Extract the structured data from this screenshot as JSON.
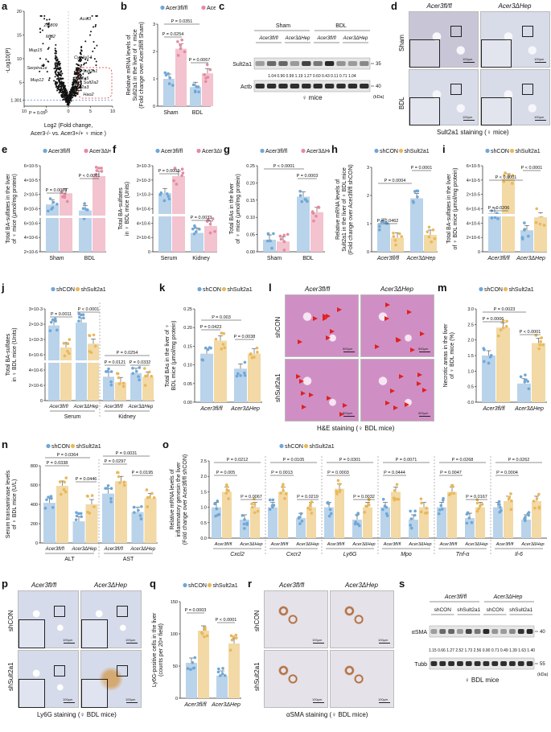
{
  "panel_letters": [
    "a",
    "b",
    "c",
    "d",
    "e",
    "f",
    "g",
    "h",
    "i",
    "j",
    "k",
    "l",
    "m",
    "n",
    "o",
    "p",
    "q",
    "r",
    "s"
  ],
  "colors": {
    "blue": "#6fa7d6",
    "pink": "#e58aa0",
    "orange": "#e8b85a",
    "blue_bar": "#b9d3ea",
    "pink_bar": "#f3c3cf",
    "orange_bar": "#f2d9a5",
    "ihc_bg": "#d6dbeb",
    "he_bg": "#cf8fc4",
    "brown": "#b2703f"
  },
  "legend": {
    "fl": "Acer3fl/fl",
    "dhep": "Acer3ΔHep",
    "shcon": "shCON",
    "shsult": "shSult2a1"
  },
  "a": {
    "ylabel": "-Log10(P)",
    "xlabel_line1": "Log2 (Fold change,",
    "xlabel_line2": "Acer3-/- vs. Acer3+/+ ♀ mice )",
    "yticks": [
      "20",
      "15",
      "10",
      "5",
      "1.301"
    ],
    "xticks": [
      "10",
      "5",
      "0",
      "5",
      "10"
    ],
    "pval": "P = 0.05",
    "genes": [
      "Zfp809",
      "Mal2",
      "Mup15",
      "Serpina1e",
      "Mup12",
      "Acot3",
      "Cyp4a14",
      "Sult2a1",
      "Sult2a5",
      "Sult2a2",
      "Sult2a3",
      "Hao2"
    ]
  },
  "b": {
    "ylabel_l1": "Relative mRNA levels of",
    "ylabel_l2": "Sult2a1 in the liver of ♀ mice",
    "ylabel_l3": "(Fold change over Acer3fl/fl Sham)",
    "yticks": [
      "0",
      "1",
      "2",
      "3"
    ],
    "groups": [
      "Sham",
      "BDL"
    ],
    "p1": "P = 0.0351",
    "p2": "P = 0.0254",
    "p3": "P = 0.0067"
  },
  "c": {
    "groups": [
      "Sham",
      "BDL"
    ],
    "genos": [
      "Acer3fl/fl",
      "Acer3ΔHep",
      "Acer3fl/fl",
      "Acer3ΔHep"
    ],
    "bands": [
      "Sult2a1",
      "Actb"
    ],
    "mw": [
      "35",
      "40"
    ],
    "quant": "1.04 0.96 0.99 1.19 1.27 0.60 0.43 0.11 0.71 1.04",
    "footer": "♀ mice",
    "kda": "(kDa)"
  },
  "d": {
    "cols": [
      "Acer3fl/fl",
      "Acer3ΔHep"
    ],
    "rows": [
      "Sham",
      "BDL"
    ],
    "scale": "100μm",
    "caption": "Sult2a1 staining (♀ mice)"
  },
  "e": {
    "ylabel_l1": "Total BA-sulfates in the liver",
    "ylabel_l2": "of ♀ mice (μmol/mg protein)",
    "yticks": [
      "2×10-6",
      "4×10-6",
      "6×10-6",
      "8×10-6",
      "2×10-5",
      "4×10-5",
      "6×10-5"
    ],
    "groups": [
      "Sham",
      "BDL"
    ],
    "p1": "P = 0.0089",
    "p2": "P < 0.0001"
  },
  "f": {
    "ylabel_l1": "Total BA-sulfates",
    "ylabel_l2": "in ♀ BDL mice (Units)",
    "yticks": [
      "0",
      "2×10-6",
      "4×10-6",
      "6×10-6",
      "1×10-3",
      "2×10-3",
      "3×10-3"
    ],
    "groups": [
      "Serum",
      "Kidney"
    ],
    "p1": "P = 0.0002",
    "p2": "P = 0.0033"
  },
  "g": {
    "ylabel_l1": "Total BAs in the liver",
    "ylabel_l2": "of ♀ mice (μmol/mg protein)",
    "yticks": [
      "0.00",
      "0.05",
      "0.10",
      "0.15",
      "0.20",
      "0.25"
    ],
    "groups": [
      "Sham",
      "BDL"
    ],
    "p1": "P < 0.0001",
    "p2": "P = 0.0003"
  },
  "h": {
    "ylabel_l1": "Relative mRNA levels of",
    "ylabel_l2": "Sult2a1 in the liver of ♀ BDL mice",
    "ylabel_l3": "(Fold change over Acer3fl/fl shCON)",
    "yticks": [
      "0",
      "1",
      "2",
      "3"
    ],
    "groups": [
      "Acer3fl/fl",
      "Acer3ΔHep"
    ],
    "p1": "P = 0.0004",
    "p2": "P = 0.0001",
    "p3": "P = 0.0462"
  },
  "i": {
    "ylabel_l1": "Total BA-sulfates in the liver",
    "ylabel_l2": "of ♀ BDL mice (μmol/mg protein)",
    "yticks": [
      "0",
      "2×10-6",
      "4×10-6",
      "6×10-6",
      "2×10-5",
      "4×10-5",
      "6×10-5"
    ],
    "groups": [
      "Acer3fl/fl",
      "Acer3ΔHep"
    ],
    "p1": "P < 0.0001",
    "p2": "P < 0.0001",
    "p3": "P = 0.0206"
  },
  "j": {
    "ylabel_l1": "Total BA-sulfates",
    "ylabel_l2": "in ♀ BDL mice (Units)",
    "yticks": [
      "0",
      "2×10-6",
      "4×10-6",
      "6×10-6",
      "1×10-3",
      "2×10-3",
      "3×10-3"
    ],
    "groups": [
      "Acer3fl/fl",
      "Acer3ΔHep",
      "Acer3fl/fl",
      "Acer3ΔHep"
    ],
    "sections": [
      "Serum",
      "Kidney"
    ],
    "p": [
      "P = 0.0011",
      "P < 0.0001",
      "P = 0.0254",
      "P = 0.0121",
      "P = 0.0332"
    ]
  },
  "k": {
    "ylabel_l1": "Total BAs in the liver of ♀",
    "ylabel_l2": "BDL mice (μmol/mg protein)",
    "yticks": [
      "0.00",
      "0.05",
      "0.10",
      "0.15",
      "0.20",
      "0.25"
    ],
    "groups": [
      "Acer3fl/fl",
      "Acer3ΔHep"
    ],
    "p1": "P = 0.003",
    "p2": "P = 0.0423",
    "p3": "P = 0.0038"
  },
  "l": {
    "cols": [
      "Acer3fl/fl",
      "Acer3ΔHep"
    ],
    "rows": [
      "shCON",
      "shSult2a1"
    ],
    "scale": "500μm",
    "caption": "H&E staining (♀ BDL mice)"
  },
  "m": {
    "ylabel_l1": "Necrotic areas in the liver",
    "ylabel_l2": "of ♀ BDL mice (%)",
    "yticks": [
      "0.0",
      "0.5",
      "1.0",
      "1.5",
      "2.0",
      "2.5",
      "3.0"
    ],
    "groups": [
      "Acer3fl/fl",
      "Acer3ΔHep"
    ],
    "p1": "P = 0.0023",
    "p2": "P = 0.0006",
    "p3": "P < 0.0001"
  },
  "n": {
    "ylabel_l1": "Serum transaminase levels",
    "ylabel_l2": "of ♀ BDL mice (U/L)",
    "yticks": [
      "0",
      "200",
      "400",
      "600",
      "800"
    ],
    "sections": [
      "ALT",
      "AST"
    ],
    "groups": [
      "Acer3fl/fl",
      "Acer3ΔHep",
      "Acer3fl/fl",
      "Acer3ΔHep"
    ],
    "p": [
      "P = 0.0364",
      "P = 0.0338",
      "P = 0.0446",
      "P = 0.0031",
      "P = 0.0297",
      "P = 0.0195"
    ]
  },
  "o": {
    "ylabel_l1": "Relative mRNA levels of",
    "ylabel_l2": "inflammatory genesin the liver",
    "ylabel_l3": "(Fold change over Acer3fl/fl shCON)",
    "yticks": [
      "0.0",
      "0.5",
      "1.0",
      "1.5",
      "2.0",
      "2.5"
    ],
    "genes": [
      "Cxcl2",
      "Cxcr2",
      "Ly6G",
      "Mpo",
      "Tnf-α",
      "Il-6"
    ],
    "p": [
      [
        "P = 0.0212",
        "P = 0.005",
        "P = 0.0067"
      ],
      [
        "P = 0.0105",
        "P = 0.0013",
        "P = 0.0219"
      ],
      [
        "P = 0.0301",
        "P = 0.0003",
        "P = 0.0032"
      ],
      [
        "P = 0.0071",
        "P = 0.0444",
        ""
      ],
      [
        "P = 0.0268",
        "P = 0.0047",
        "P = 0.0167"
      ],
      [
        "P = 0.0262",
        "P = 0.0004",
        ""
      ]
    ]
  },
  "p": {
    "cols": [
      "Acer3fl/fl",
      "Acer3ΔHep"
    ],
    "rows": [
      "shCON",
      "shSult2a1"
    ],
    "scale": "100μm",
    "caption": "Ly6G staining (♀ BDL mice)"
  },
  "q": {
    "ylabel_l1": "Ly6G-positive cells in the liver",
    "ylabel_l2": "(counts per 20× field)",
    "yticks": [
      "0",
      "50",
      "100",
      "150"
    ],
    "groups": [
      "Acer3fl/fl",
      "Acer3ΔHep"
    ],
    "p1": "P = 0.0003",
    "p2": "P < 0.0001"
  },
  "r": {
    "cols": [
      "Acer3fl/fl",
      "Acer3ΔHep"
    ],
    "rows": [
      "shCON",
      "shSult2a1"
    ],
    "scale": "100μm",
    "caption": "αSMA staining (♀ BDL mice)"
  },
  "s": {
    "genos": [
      "Acer3fl/fl",
      "Acer3ΔHep"
    ],
    "lanes": [
      "shCON",
      "shSult2a1",
      "shCON",
      "shSult2a1"
    ],
    "bands": [
      "αSMA",
      "Tubb"
    ],
    "mw": [
      "40",
      "55"
    ],
    "quant": "1.15 0.66 1.27 2.52 1.73 2.56 0.90 0.71 0.49 1.39 1.63 1.40",
    "footer": "♀ BDL mice",
    "kda": "(kDa)"
  },
  "chart_data": [
    {
      "panel": "a",
      "type": "scatter",
      "xlabel": "Log2 (Fold change, Acer3-/- vs. Acer3+/+ ♀ mice )",
      "ylabel": "-Log10(P)",
      "xlim": [
        -10,
        10
      ],
      "ylim": [
        0,
        20
      ],
      "threshold": 1.301
    },
    {
      "panel": "b",
      "type": "bar",
      "categories": [
        "Sham",
        "BDL"
      ],
      "series": [
        {
          "name": "Acer3fl/fl",
          "values": [
            1.0,
            0.7
          ]
        },
        {
          "name": "Acer3ΔHep",
          "values": [
            2.1,
            1.2
          ]
        }
      ],
      "ylim": [
        0,
        3
      ]
    },
    {
      "panel": "e",
      "type": "bar",
      "categories": [
        "Sham",
        "BDL"
      ],
      "series": [
        {
          "name": "Acer3fl/fl",
          "values": [
            6e-06,
            5.2e-06
          ]
        },
        {
          "name": "Acer3ΔHep",
          "values": [
            2.2e-05,
            4e-05
          ]
        }
      ]
    },
    {
      "panel": "f",
      "type": "bar",
      "categories": [
        "Serum",
        "Kidney"
      ],
      "series": [
        {
          "name": "Acer3fl/fl",
          "values": [
            0.0012,
            2.5e-06
          ]
        },
        {
          "name": "Acer3ΔHep",
          "values": [
            0.0025,
            3.4e-06
          ]
        }
      ]
    },
    {
      "panel": "g",
      "type": "bar",
      "categories": [
        "Sham",
        "BDL"
      ],
      "series": [
        {
          "name": "Acer3fl/fl",
          "values": [
            0.035,
            0.16
          ]
        },
        {
          "name": "Acer3ΔHep",
          "values": [
            0.03,
            0.115
          ]
        }
      ],
      "ylim": [
        0,
        0.25
      ]
    },
    {
      "panel": "h",
      "type": "bar",
      "categories": [
        "Acer3fl/fl",
        "Acer3ΔHep"
      ],
      "series": [
        {
          "name": "shCON",
          "values": [
            1.0,
            1.9
          ]
        },
        {
          "name": "shSult2a1",
          "values": [
            0.5,
            0.6
          ]
        }
      ],
      "ylim": [
        0,
        3
      ]
    },
    {
      "panel": "i",
      "type": "bar",
      "categories": [
        "Acer3fl/fl",
        "Acer3ΔHep"
      ],
      "series": [
        {
          "name": "shCON",
          "values": [
            4e-06,
            4.5e-05
          ]
        },
        {
          "name": "shSult2a1",
          "values": [
            2.5e-06,
            1e-05
          ]
        }
      ]
    },
    {
      "panel": "k",
      "type": "bar",
      "categories": [
        "Acer3fl/fl",
        "Acer3ΔHep"
      ],
      "series": [
        {
          "name": "shCON",
          "values": [
            0.13,
            0.09
          ]
        },
        {
          "name": "shSult2a1",
          "values": [
            0.165,
            0.13
          ]
        }
      ],
      "ylim": [
        0,
        0.25
      ]
    },
    {
      "panel": "m",
      "type": "bar",
      "categories": [
        "Acer3fl/fl",
        "Acer3ΔHep"
      ],
      "series": [
        {
          "name": "shCON",
          "values": [
            1.5,
            0.6
          ]
        },
        {
          "name": "shSult2a1",
          "values": [
            2.4,
            1.9
          ]
        }
      ],
      "ylim": [
        0,
        3
      ]
    },
    {
      "panel": "n",
      "type": "bar",
      "categories": [
        "ALT fl/fl",
        "ALT ΔHep",
        "AST fl/fl",
        "AST ΔHep"
      ],
      "series": [
        {
          "name": "shCON",
          "values": [
            420,
            220,
            520,
            310
          ]
        },
        {
          "name": "shSult2a1",
          "values": [
            590,
            410,
            640,
            470
          ]
        }
      ],
      "ylim": [
        0,
        800
      ]
    },
    {
      "panel": "o",
      "type": "bar",
      "categories": [
        "Cxcl2 fl",
        "Cxcl2 Δ",
        "Cxcr2 fl",
        "Cxcr2 Δ",
        "Ly6G fl",
        "Ly6G Δ",
        "Mpo fl",
        "Mpo Δ",
        "Tnf-α fl",
        "Tnf-α Δ",
        "Il-6 fl",
        "Il-6 Δ"
      ],
      "series": [
        {
          "name": "shCON",
          "values": [
            1.0,
            0.6,
            1.0,
            0.65,
            1.0,
            0.6,
            1.0,
            0.6,
            1.0,
            0.65,
            1.0,
            0.6
          ]
        },
        {
          "name": "shSult2a1",
          "values": [
            1.5,
            1.0,
            1.5,
            1.0,
            1.6,
            1.0,
            1.5,
            1.0,
            1.5,
            1.0,
            1.2,
            1.2
          ]
        }
      ],
      "ylim": [
        0,
        2.5
      ]
    },
    {
      "panel": "q",
      "type": "bar",
      "categories": [
        "Acer3fl/fl",
        "Acer3ΔHep"
      ],
      "series": [
        {
          "name": "shCON",
          "values": [
            55,
            35
          ]
        },
        {
          "name": "shSult2a1",
          "values": [
            105,
            85
          ]
        }
      ],
      "ylim": [
        0,
        150
      ]
    }
  ]
}
